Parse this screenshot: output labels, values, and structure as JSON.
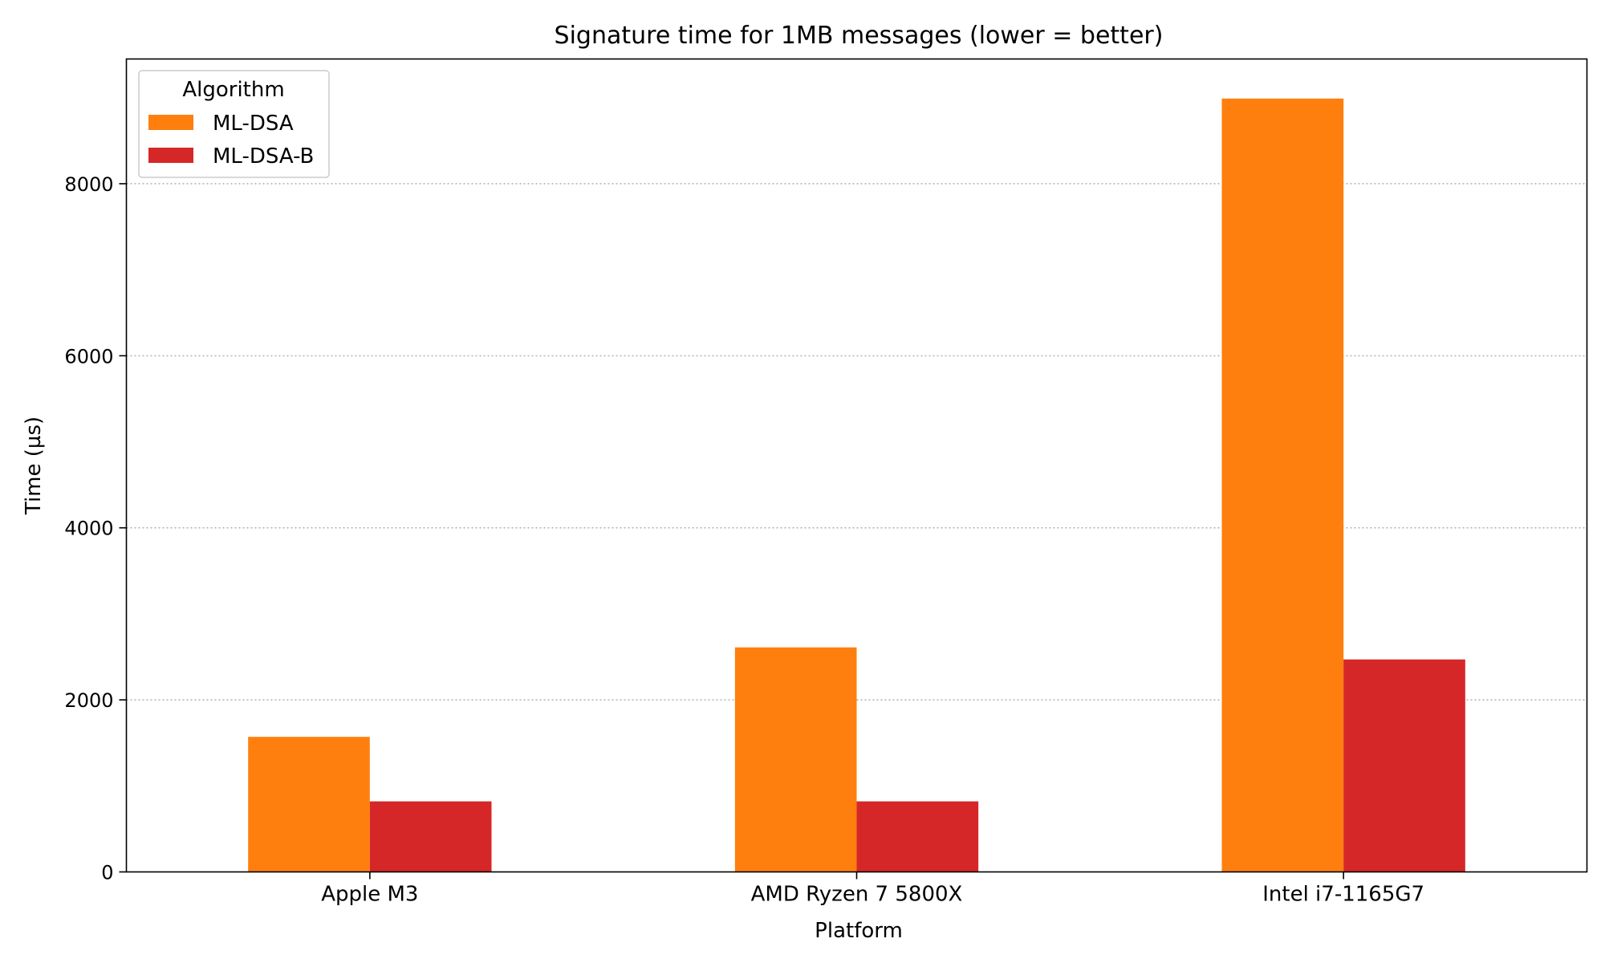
{
  "chart_data": {
    "type": "bar",
    "title": "Signature time for 1MB messages (lower = better)",
    "xlabel": "Platform",
    "ylabel": "Time (µs)",
    "categories": [
      "Apple M3",
      "AMD Ryzen 7 5800X",
      "Intel i7-1165G7"
    ],
    "series": [
      {
        "name": "ML-DSA",
        "values": [
          1570,
          2610,
          8990
        ],
        "color": "#ff7f0e"
      },
      {
        "name": "ML-DSA-B",
        "values": [
          820,
          820,
          2470
        ],
        "color": "#d62728"
      }
    ],
    "ylim": [
      0,
      9450
    ],
    "yticks": [
      0,
      2000,
      4000,
      6000,
      8000
    ],
    "grid": "y-dotted",
    "legend": {
      "title": "Algorithm",
      "placement": "top-left"
    }
  }
}
